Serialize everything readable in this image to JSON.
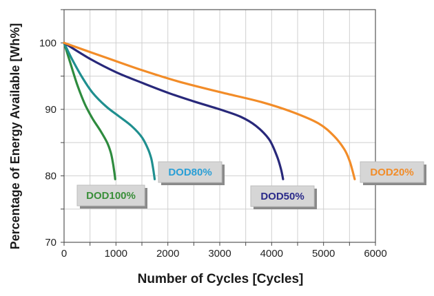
{
  "chart_data": {
    "type": "line",
    "xlabel": "Number of Cycles [Cycles]",
    "ylabel": "Percentage of Energy Available [Wh%]",
    "xlim": [
      0,
      6000
    ],
    "ylim": [
      70,
      105
    ],
    "x_ticks": [
      "0",
      "1000",
      "2000",
      "3000",
      "4000",
      "5000",
      "6000"
    ],
    "y_ticks": [
      "70",
      "80",
      "90",
      "100"
    ],
    "grid": true,
    "series": [
      {
        "name": "DOD100%",
        "color": "#2e8b3e",
        "label_color": "#3a8f3a",
        "x": [
          0,
          100,
          250,
          400,
          550,
          700,
          830,
          900,
          940,
          960,
          975,
          985
        ],
        "y": [
          100,
          97.5,
          93.8,
          90.8,
          88.6,
          86.8,
          85,
          83.5,
          82,
          81,
          80.2,
          79.5
        ]
      },
      {
        "name": "DOD80%",
        "color": "#1f8f8f",
        "label_color": "#2a9fd6",
        "x": [
          0,
          150,
          350,
          550,
          800,
          1050,
          1300,
          1500,
          1620,
          1680,
          1710,
          1730,
          1745
        ],
        "y": [
          100,
          97.6,
          94.8,
          92.5,
          90.5,
          89,
          87.5,
          85.8,
          84,
          82.6,
          81.4,
          80.4,
          79.5
        ]
      },
      {
        "name": "DOD50%",
        "color": "#28287a",
        "label_color": "#2a2a8a",
        "x": [
          0,
          500,
          1000,
          1500,
          2000,
          2500,
          3000,
          3400,
          3700,
          3950,
          4100,
          4180,
          4220
        ],
        "y": [
          100,
          97.6,
          95.6,
          94,
          92.5,
          91.2,
          90,
          88.9,
          87.5,
          85.5,
          83,
          81,
          79.5
        ]
      },
      {
        "name": "DOD20%",
        "color": "#f28c28",
        "label_color": "#f28c28",
        "x": [
          0,
          800,
          1500,
          2200,
          3000,
          3800,
          4400,
          4900,
          5200,
          5400,
          5500,
          5560,
          5600
        ],
        "y": [
          100,
          97.8,
          95.9,
          94.2,
          92.6,
          91.1,
          89.6,
          87.9,
          86,
          84,
          82.3,
          80.7,
          79.5
        ]
      }
    ]
  }
}
